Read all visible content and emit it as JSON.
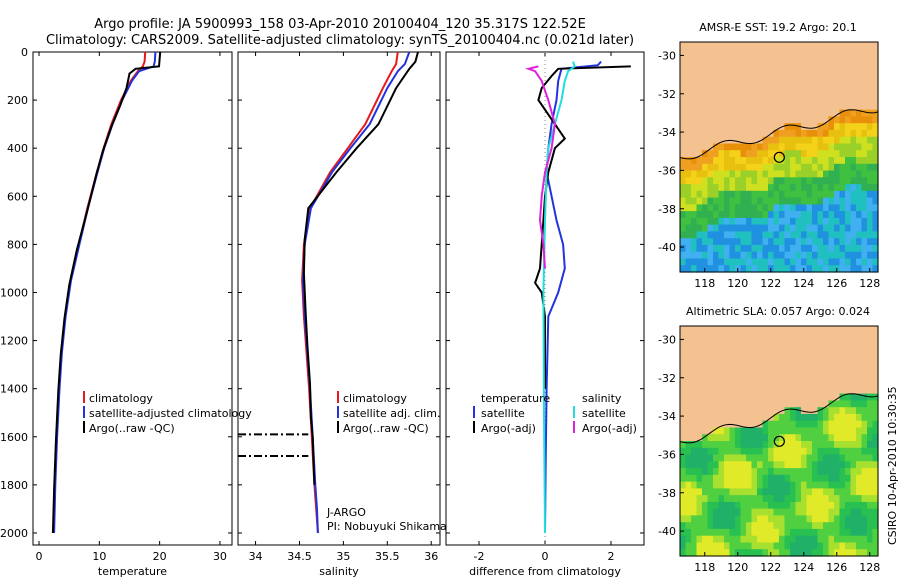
{
  "header": {
    "line1": "Argo profile: JA 5900993_158 03-Apr-2010 20100404_120 35.317S 122.52E",
    "line2": "Climatology: CARS2009. Satellite-adjusted climatology: synTS_20100404.nc (0.021d later)"
  },
  "side_label": "CSIRO 10-Apr-2010 10:30:35",
  "colors": {
    "climatology": "#e41a1c",
    "satellite": "#2233dd",
    "argo": "#000000",
    "sat_sal": "#22dddd",
    "argo_sal": "#dd22dd",
    "land": "#f4c190"
  },
  "chart_data": [
    {
      "type": "line",
      "panel": "temperature",
      "xlabel": "temperature",
      "ylabel": "",
      "xlim": [
        -1,
        32
      ],
      "ylim": [
        2050,
        0
      ],
      "xticks": [
        "0",
        "10",
        "20",
        "30"
      ],
      "xtick_values": [
        0,
        10,
        20,
        30
      ],
      "yticks": [
        "0",
        "200",
        "400",
        "600",
        "800",
        "1000",
        "1200",
        "1400",
        "1600",
        "1800",
        "2000"
      ],
      "ytick_values": [
        0,
        200,
        400,
        600,
        800,
        1000,
        1200,
        1400,
        1600,
        1800,
        2000
      ],
      "legend": [
        "climatology",
        "satellite-adjusted climatology",
        "Argo(..raw -QC)"
      ],
      "series": [
        {
          "name": "climatology",
          "color": "#e41a1c",
          "x": [
            17.6,
            17.5,
            17.2,
            16.4,
            15.2,
            13.6,
            12.0,
            10.7,
            9.6,
            8.0,
            6.6,
            5.2,
            4.3,
            3.7,
            3.3,
            2.9,
            2.6,
            2.4
          ],
          "y": [
            0,
            40,
            60,
            80,
            120,
            200,
            300,
            400,
            500,
            650,
            800,
            950,
            1100,
            1250,
            1400,
            1600,
            1800,
            2000
          ]
        },
        {
          "name": "satellite-adjusted climatology",
          "color": "#2233dd",
          "x": [
            19.3,
            19.2,
            19.0,
            16.6,
            15.4,
            13.8,
            12.2,
            10.8,
            9.7,
            8.1,
            6.7,
            5.3,
            4.4,
            3.8,
            3.4,
            3.0,
            2.7,
            2.5
          ],
          "y": [
            0,
            40,
            60,
            80,
            120,
            200,
            300,
            400,
            500,
            650,
            800,
            950,
            1100,
            1250,
            1400,
            1600,
            1800,
            2000
          ]
        },
        {
          "name": "Argo(..raw -QC)",
          "color": "#000000",
          "x": [
            20.1,
            20.0,
            19.9,
            16.0,
            15.0,
            14.5,
            13.5,
            12.0,
            10.6,
            9.5,
            8.0,
            6.3,
            5.0,
            4.2,
            3.6,
            3.2,
            2.8,
            2.5,
            2.3
          ],
          "y": [
            0,
            30,
            60,
            70,
            90,
            150,
            220,
            310,
            410,
            510,
            660,
            820,
            970,
            1110,
            1260,
            1410,
            1620,
            1820,
            2000
          ]
        }
      ]
    },
    {
      "type": "line",
      "panel": "salinity",
      "xlabel": "salinity",
      "ylabel": "",
      "xlim": [
        33.8,
        36.1
      ],
      "ylim": [
        2050,
        0
      ],
      "xticks": [
        "34",
        "34.5",
        "35",
        "35.5",
        "36"
      ],
      "xtick_values": [
        34,
        34.5,
        35,
        35.5,
        36
      ],
      "legend": [
        "climatology",
        "satellite adj. clim.",
        "Argo(..raw -QC)"
      ],
      "annotations": [
        "J-ARGO",
        "PI: Nobuyuki Shikama"
      ],
      "series": [
        {
          "name": "climatology",
          "color": "#e41a1c",
          "x": [
            35.62,
            35.6,
            35.55,
            35.45,
            35.25,
            35.05,
            34.85,
            34.62,
            34.55,
            34.53,
            34.55,
            34.58,
            34.61,
            34.64,
            34.67,
            34.69,
            34.71
          ],
          "y": [
            0,
            50,
            80,
            150,
            300,
            400,
            500,
            650,
            800,
            950,
            1100,
            1250,
            1400,
            1600,
            1800,
            1900,
            2000
          ]
        },
        {
          "name": "satellite adj. clim.",
          "color": "#2233dd",
          "x": [
            35.75,
            35.7,
            35.62,
            35.5,
            35.3,
            35.08,
            34.87,
            34.63,
            34.56,
            34.54,
            34.56,
            34.59,
            34.62,
            34.65,
            34.68,
            34.7,
            34.71
          ],
          "y": [
            0,
            50,
            80,
            150,
            300,
            400,
            500,
            650,
            800,
            950,
            1100,
            1250,
            1400,
            1600,
            1800,
            1900,
            2000
          ]
        },
        {
          "name": "Argo(..raw -QC)",
          "color": "#000000",
          "x": [
            35.85,
            35.82,
            35.75,
            35.6,
            35.4,
            35.15,
            34.92,
            34.6,
            34.56,
            34.55,
            34.57,
            34.59,
            34.62,
            34.63,
            34.65,
            34.66,
            34.67
          ],
          "y": [
            0,
            40,
            70,
            150,
            300,
            400,
            500,
            650,
            780,
            920,
            1080,
            1220,
            1380,
            1520,
            1600,
            1700,
            1800
          ]
        },
        {
          "name": "",
          "color": "#000000",
          "dash": true,
          "x": [
            33.8,
            34.6
          ],
          "y": [
            1590,
            1590
          ]
        },
        {
          "name": "",
          "color": "#000000",
          "dash": true,
          "x": [
            33.8,
            34.6
          ],
          "y": [
            1680,
            1680
          ]
        }
      ]
    },
    {
      "type": "line",
      "panel": "difference",
      "xlabel": "difference from climatology",
      "xlim": [
        -3,
        3
      ],
      "ylim": [
        2050,
        0
      ],
      "xticks": [
        "-2",
        "0",
        "2"
      ],
      "xtick_values": [
        -2,
        0,
        2
      ],
      "legend_left": [
        "temperature",
        "satellite",
        "Argo(-adj)"
      ],
      "legend_right": [
        "salinity",
        "satellite",
        "Argo(-adj)"
      ],
      "series": [
        {
          "name": "satellite",
          "color": "#2233dd",
          "x": [
            1.7,
            1.6,
            0.5,
            0.4,
            0.35,
            0.2,
            0.1,
            0.05,
            0.2,
            0.35,
            0.55,
            0.6,
            0.4,
            0.1,
            0.05,
            0.02,
            0.0
          ],
          "y": [
            40,
            55,
            70,
            120,
            200,
            300,
            400,
            500,
            600,
            700,
            800,
            900,
            1000,
            1100,
            1400,
            1700,
            2000
          ]
        },
        {
          "name": "Argo(-adj)",
          "color": "#000000",
          "x": [
            2.6,
            0.4,
            0.2,
            -0.1,
            -0.2,
            0.3,
            0.6,
            0.3,
            0.1,
            0.0,
            -0.05,
            -0.1,
            -0.15,
            -0.3,
            -0.1,
            0.0,
            0.0
          ],
          "y": [
            60,
            70,
            100,
            150,
            200,
            300,
            360,
            400,
            500,
            600,
            700,
            800,
            900,
            960,
            1000,
            1100,
            1400
          ]
        },
        {
          "name": "salinity satellite",
          "color": "#22dddd",
          "x": [
            0.85,
            0.9,
            0.7,
            0.6,
            0.5,
            0.3,
            0.1,
            0.05,
            0.0,
            -0.05,
            -0.03,
            0.0
          ],
          "y": [
            40,
            60,
            80,
            120,
            200,
            300,
            400,
            500,
            700,
            1000,
            1500,
            2000
          ]
        },
        {
          "name": "salinity Argo(-adj)",
          "color": "#dd22dd",
          "x": [
            -0.2,
            -0.5,
            -0.3,
            -0.1,
            0.1,
            0.3,
            0.2,
            0.0,
            -0.1,
            -0.15,
            -0.05,
            0.0
          ],
          "y": [
            60,
            70,
            80,
            120,
            200,
            300,
            400,
            500,
            600,
            700,
            800,
            900
          ]
        }
      ]
    }
  ],
  "maps": [
    {
      "title": "AMSR-E SST: 19.2 Argo: 20.1",
      "xticks": [
        "118",
        "120",
        "122",
        "124",
        "126",
        "128"
      ],
      "xtick_values": [
        118,
        120,
        122,
        124,
        126,
        128
      ],
      "yticks": [
        "-30",
        "-32",
        "-34",
        "-36",
        "-38",
        "-40"
      ],
      "ytick_values": [
        -30,
        -32,
        -34,
        -36,
        -38,
        -40
      ],
      "xlim": [
        116.5,
        128.5
      ],
      "ylim": [
        -41.3,
        -29.3
      ],
      "float_position": {
        "lon": 122.52,
        "lat": -35.317
      }
    },
    {
      "title": "Altimetric SLA: 0.057 Argo: 0.024",
      "xticks": [
        "118",
        "120",
        "122",
        "124",
        "126",
        "128"
      ],
      "xtick_values": [
        118,
        120,
        122,
        124,
        126,
        128
      ],
      "yticks": [
        "-30",
        "-32",
        "-34",
        "-36",
        "-38",
        "-40"
      ],
      "ytick_values": [
        -30,
        -32,
        -34,
        -36,
        -38,
        -40
      ],
      "xlim": [
        116.5,
        128.5
      ],
      "ylim": [
        -41.3,
        -29.3
      ],
      "float_position": {
        "lon": 122.52,
        "lat": -35.317
      }
    }
  ]
}
